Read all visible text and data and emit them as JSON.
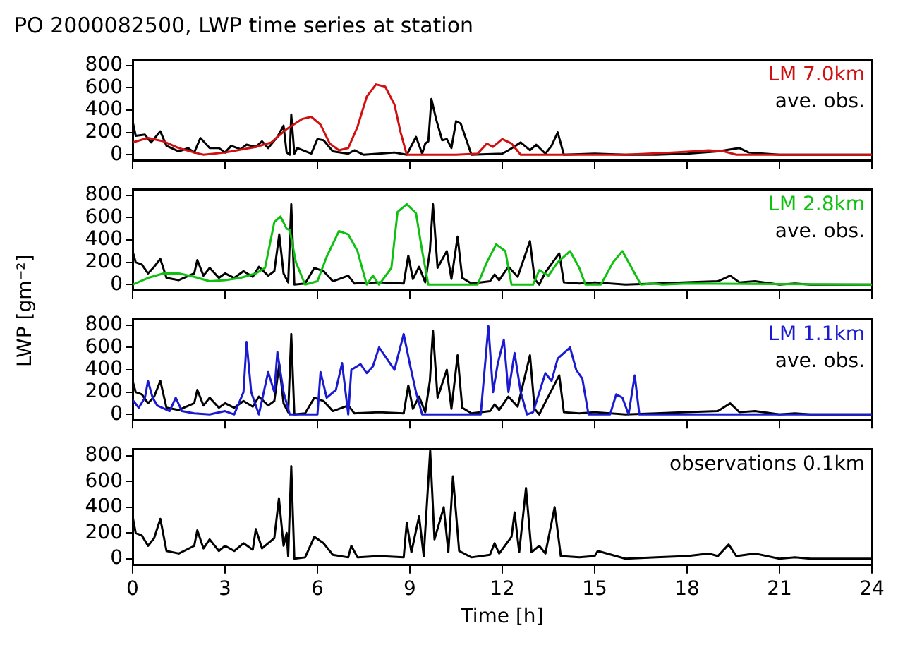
{
  "chart_data": [
    {
      "type": "line",
      "title": "PO 2000082500, LWP time series at station",
      "xlim": [
        0,
        24
      ],
      "xticks": [
        0,
        3,
        6,
        9,
        12,
        15,
        18,
        21,
        24
      ],
      "ylim": [
        -50,
        850
      ],
      "yticks": [
        0,
        200,
        400,
        600,
        800
      ],
      "tick_labels": "y",
      "legend": "top right",
      "grid": false,
      "series": [
        {
          "name": "LM 7.0km",
          "color": "#d01010",
          "x": [
            0,
            0.5,
            1,
            1.5,
            2,
            2.3,
            3,
            4,
            4.5,
            5,
            5.5,
            5.8,
            6.1,
            6.4,
            6.7,
            7,
            7.3,
            7.6,
            7.9,
            8.2,
            8.5,
            8.7,
            8.9,
            10.5,
            11.2,
            11.5,
            11.7,
            12,
            12.3,
            12.6,
            14,
            16,
            17.5,
            18.2,
            18.7,
            19.2,
            19.6,
            24
          ],
          "values": [
            110,
            150,
            120,
            60,
            20,
            0,
            20,
            70,
            110,
            230,
            320,
            340,
            270,
            100,
            40,
            60,
            250,
            520,
            630,
            610,
            450,
            200,
            0,
            0,
            10,
            100,
            70,
            140,
            100,
            0,
            0,
            0,
            20,
            30,
            40,
            30,
            0,
            0
          ]
        },
        {
          "name": "ave. obs.",
          "color": "#000000",
          "x": [
            0,
            0.1,
            0.4,
            0.6,
            0.9,
            1.1,
            1.5,
            1.8,
            2,
            2.2,
            2.5,
            2.8,
            3,
            3.2,
            3.5,
            3.7,
            4,
            4.2,
            4.4,
            4.7,
            4.9,
            5.0,
            5.1,
            5.15,
            5.25,
            5.35,
            5.8,
            6,
            6.2,
            6.5,
            7,
            7.2,
            7.5,
            8,
            8.5,
            8.9,
            9.2,
            9.4,
            9.5,
            9.6,
            9.7,
            9.85,
            10.05,
            10.2,
            10.35,
            10.5,
            10.65,
            11,
            12,
            12.2,
            12.6,
            12.9,
            13.1,
            13.4,
            13.6,
            13.8,
            14.0,
            15,
            16,
            17,
            18,
            19,
            19.7,
            20,
            20.5,
            21,
            24
          ],
          "values": [
            300,
            170,
            180,
            110,
            210,
            80,
            30,
            60,
            20,
            150,
            60,
            60,
            20,
            80,
            50,
            90,
            70,
            120,
            60,
            160,
            260,
            20,
            0,
            360,
            10,
            60,
            10,
            140,
            130,
            30,
            10,
            40,
            0,
            10,
            20,
            0,
            160,
            10,
            100,
            120,
            500,
            320,
            130,
            140,
            60,
            300,
            280,
            0,
            10,
            40,
            110,
            40,
            90,
            10,
            80,
            200,
            0,
            10,
            0,
            0,
            10,
            30,
            60,
            20,
            10,
            0,
            0
          ]
        }
      ]
    },
    {
      "type": "line",
      "ylabel": "LWP [gm⁻²]",
      "xlim": [
        0,
        24
      ],
      "xticks": [
        0,
        3,
        6,
        9,
        12,
        15,
        18,
        21,
        24
      ],
      "ylim": [
        -50,
        850
      ],
      "yticks": [
        0,
        200,
        400,
        600,
        800
      ],
      "tick_labels": "y",
      "legend": "top right",
      "grid": false,
      "series": [
        {
          "name": "LM 2.8km",
          "color": "#10c010",
          "x": [
            0,
            0.5,
            1,
            1.5,
            2,
            2.5,
            3,
            3.5,
            4,
            4.3,
            4.6,
            4.8,
            5,
            5.1,
            5.3,
            5.6,
            6,
            6.3,
            6.7,
            7,
            7.3,
            7.6,
            7.8,
            8,
            8.4,
            8.6,
            8.9,
            9.2,
            9.4,
            9.6,
            11.2,
            11.5,
            11.8,
            12.1,
            12.3,
            13,
            13.2,
            13.5,
            13.8,
            14.2,
            14.5,
            14.7,
            15.2,
            15.6,
            15.9,
            16.2,
            16.5,
            16.9,
            17.2,
            18,
            24
          ],
          "values": [
            0,
            60,
            100,
            100,
            70,
            30,
            40,
            60,
            100,
            150,
            560,
            610,
            500,
            490,
            200,
            0,
            30,
            250,
            480,
            450,
            300,
            0,
            80,
            0,
            150,
            650,
            720,
            640,
            300,
            0,
            0,
            200,
            360,
            300,
            0,
            0,
            130,
            80,
            200,
            300,
            150,
            0,
            0,
            200,
            300,
            150,
            0,
            10,
            0,
            10,
            0
          ]
        },
        {
          "name": "ave. obs.",
          "color": "#000000",
          "x": [
            0,
            0.1,
            0.3,
            0.5,
            0.7,
            0.9,
            1.1,
            1.5,
            2,
            2.1,
            2.3,
            2.5,
            2.8,
            3,
            3.3,
            3.6,
            3.9,
            4.1,
            4.4,
            4.6,
            4.76,
            4.9,
            5.05,
            5.15,
            5.25,
            5.6,
            5.9,
            6.2,
            6.5,
            7,
            7.2,
            8,
            8.8,
            8.95,
            9.1,
            9.3,
            9.5,
            9.65,
            9.75,
            9.9,
            10.2,
            10.35,
            10.55,
            10.7,
            11,
            11.6,
            11.75,
            11.9,
            12.2,
            12.5,
            12.9,
            13.05,
            13.2,
            13.4,
            13.85,
            14,
            14.5,
            15,
            16,
            17,
            18,
            19,
            19.4,
            19.7,
            20.2,
            21,
            21.5,
            22,
            24
          ],
          "values": [
            300,
            200,
            180,
            100,
            160,
            230,
            60,
            40,
            100,
            220,
            80,
            150,
            60,
            100,
            60,
            120,
            70,
            160,
            80,
            120,
            450,
            100,
            20,
            720,
            0,
            10,
            150,
            120,
            30,
            80,
            10,
            20,
            10,
            260,
            50,
            160,
            20,
            300,
            720,
            150,
            300,
            50,
            430,
            60,
            10,
            30,
            90,
            40,
            160,
            70,
            390,
            50,
            0,
            110,
            280,
            20,
            10,
            20,
            0,
            10,
            20,
            30,
            80,
            20,
            30,
            0,
            10,
            0,
            0
          ]
        }
      ]
    },
    {
      "type": "line",
      "xlim": [
        0,
        24
      ],
      "xticks": [
        0,
        3,
        6,
        9,
        12,
        15,
        18,
        21,
        24
      ],
      "ylim": [
        -50,
        850
      ],
      "yticks": [
        0,
        200,
        400,
        600,
        800
      ],
      "tick_labels": "y",
      "legend": "top right",
      "grid": false,
      "series": [
        {
          "name": "LM 1.1km",
          "color": "#1a1ad0",
          "x": [
            0,
            0.2,
            0.4,
            0.5,
            0.65,
            0.8,
            1.2,
            1.4,
            1.6,
            2,
            2.5,
            3,
            3.3,
            3.6,
            3.7,
            3.85,
            4.1,
            4.4,
            4.6,
            4.7,
            4.9,
            5.1,
            6,
            6.1,
            6.3,
            6.6,
            6.8,
            7,
            7.1,
            7.4,
            7.6,
            7.8,
            8,
            8.2,
            8.5,
            8.8,
            9,
            9.2,
            9.4,
            11.3,
            11.55,
            11.7,
            11.85,
            12.05,
            12.2,
            12.4,
            12.6,
            12.8,
            13,
            13.4,
            13.6,
            13.8,
            14.2,
            14.4,
            14.6,
            14.8,
            15.5,
            15.7,
            15.9,
            16.1,
            16.3,
            16.45,
            24
          ],
          "values": [
            130,
            60,
            150,
            300,
            150,
            80,
            30,
            150,
            30,
            10,
            0,
            30,
            0,
            200,
            650,
            200,
            0,
            380,
            200,
            560,
            200,
            0,
            0,
            380,
            150,
            220,
            460,
            0,
            400,
            450,
            370,
            430,
            600,
            520,
            400,
            720,
            450,
            200,
            0,
            0,
            790,
            200,
            450,
            670,
            200,
            550,
            200,
            0,
            20,
            370,
            300,
            500,
            600,
            400,
            320,
            0,
            0,
            180,
            150,
            0,
            350,
            0,
            0
          ]
        },
        {
          "name": "ave. obs.",
          "color": "#000000",
          "x": [
            0,
            0.1,
            0.3,
            0.5,
            0.7,
            0.9,
            1.1,
            1.5,
            2,
            2.1,
            2.3,
            2.5,
            2.8,
            3,
            3.3,
            3.6,
            3.9,
            4.1,
            4.4,
            4.6,
            4.76,
            4.9,
            5.05,
            5.15,
            5.25,
            5.6,
            5.9,
            6.2,
            6.5,
            7,
            7.2,
            8,
            8.8,
            8.95,
            9.1,
            9.3,
            9.5,
            9.65,
            9.75,
            9.9,
            10.2,
            10.35,
            10.55,
            10.7,
            11,
            11.6,
            11.75,
            11.9,
            12.2,
            12.5,
            12.9,
            13.05,
            13.2,
            13.4,
            13.85,
            14,
            14.5,
            15,
            16,
            17,
            18,
            19,
            19.4,
            19.7,
            20.2,
            21,
            21.5,
            22,
            24
          ],
          "values": [
            300,
            200,
            180,
            100,
            160,
            300,
            60,
            40,
            100,
            220,
            80,
            150,
            60,
            100,
            60,
            120,
            70,
            160,
            80,
            120,
            450,
            100,
            20,
            720,
            0,
            10,
            150,
            120,
            30,
            80,
            10,
            20,
            10,
            260,
            50,
            160,
            20,
            300,
            750,
            150,
            400,
            50,
            530,
            60,
            10,
            30,
            90,
            40,
            160,
            70,
            530,
            50,
            0,
            110,
            350,
            20,
            10,
            20,
            0,
            10,
            20,
            30,
            100,
            20,
            30,
            0,
            10,
            0,
            0
          ]
        }
      ]
    },
    {
      "type": "line",
      "xlabel": "Time [h]",
      "xlim": [
        0,
        24
      ],
      "xticks": [
        0,
        3,
        6,
        9,
        12,
        15,
        18,
        21,
        24
      ],
      "ylim": [
        -50,
        850
      ],
      "yticks": [
        0,
        200,
        400,
        600,
        800
      ],
      "legend": "top right",
      "grid": false,
      "series": [
        {
          "name": "observations 0.1km",
          "color": "#000000",
          "x": [
            0,
            0.1,
            0.3,
            0.5,
            0.7,
            0.9,
            1.1,
            1.5,
            2,
            2.1,
            2.3,
            2.5,
            2.8,
            3,
            3.3,
            3.6,
            3.9,
            4.0,
            4.2,
            4.4,
            4.6,
            4.75,
            4.9,
            5.0,
            5.05,
            5.15,
            5.25,
            5.6,
            5.9,
            6.2,
            6.5,
            7,
            7.1,
            7.3,
            8,
            8.8,
            8.9,
            9.05,
            9.3,
            9.45,
            9.66,
            9.8,
            10.1,
            10.25,
            10.4,
            10.6,
            11,
            11.6,
            11.75,
            11.9,
            12.3,
            12.4,
            12.55,
            12.77,
            12.95,
            13.2,
            13.4,
            13.7,
            13.9,
            14.5,
            15,
            15.1,
            16,
            17,
            18,
            18.7,
            19,
            19.35,
            19.6,
            20.2,
            21,
            21.5,
            22,
            24
          ],
          "values": [
            330,
            200,
            180,
            100,
            160,
            310,
            60,
            40,
            100,
            220,
            80,
            150,
            60,
            100,
            60,
            120,
            70,
            230,
            80,
            120,
            160,
            470,
            100,
            200,
            20,
            720,
            0,
            10,
            170,
            120,
            30,
            10,
            100,
            10,
            20,
            10,
            280,
            50,
            330,
            20,
            840,
            150,
            400,
            50,
            640,
            60,
            10,
            30,
            120,
            40,
            170,
            360,
            50,
            550,
            50,
            100,
            40,
            400,
            20,
            10,
            20,
            60,
            0,
            10,
            20,
            40,
            20,
            110,
            20,
            40,
            0,
            10,
            0,
            0
          ]
        }
      ]
    }
  ]
}
